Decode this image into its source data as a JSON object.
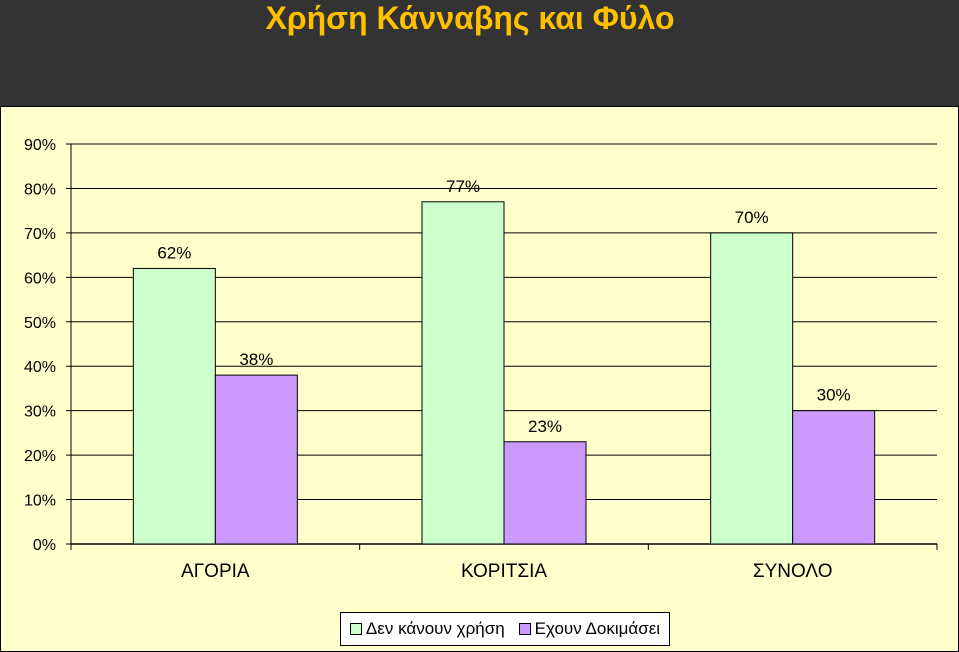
{
  "page": {
    "title": "Χρήση Κάνναβης και Φύλο"
  },
  "chart_data": {
    "type": "bar",
    "title": "Χρήση Κάνναβης και Φύλο",
    "categories": [
      "ΑΓΟΡΙΑ",
      "ΚΟΡΙΤΣΙΑ",
      "ΣΥΝΟΛΟ"
    ],
    "series": [
      {
        "name": "Δεν κάνουν χρήση",
        "values": [
          62,
          77,
          70
        ],
        "labels": [
          "62%",
          "77%",
          "70%"
        ],
        "color": "#CCFFCC"
      },
      {
        "name": "Εχουν Δοκιμάσει",
        "values": [
          38,
          23,
          30
        ],
        "labels": [
          "38%",
          "23%",
          "30%"
        ],
        "color": "#CC99FF"
      }
    ],
    "ylim": [
      0,
      90
    ],
    "yticks": [
      0,
      10,
      20,
      30,
      40,
      50,
      60,
      70,
      80,
      90
    ],
    "ytick_labels": [
      "0%",
      "10%",
      "20%",
      "30%",
      "40%",
      "50%",
      "60%",
      "70%",
      "80%",
      "90%"
    ],
    "xlabel": "",
    "ylabel": "",
    "grid": true,
    "legend": "bottom"
  }
}
